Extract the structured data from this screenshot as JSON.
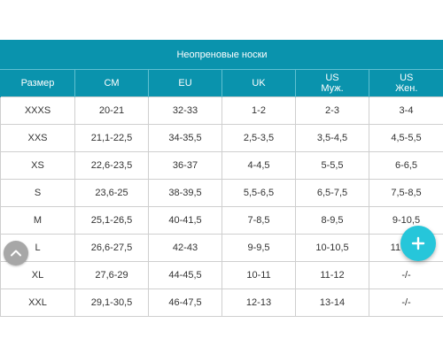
{
  "table": {
    "title": "Неопреновые носки",
    "headers": [
      {
        "line1": "Размер",
        "line2": ""
      },
      {
        "line1": "CM",
        "line2": ""
      },
      {
        "line1": "EU",
        "line2": ""
      },
      {
        "line1": "UK",
        "line2": ""
      },
      {
        "line1": "US",
        "line2": "Муж."
      },
      {
        "line1": "US",
        "line2": "Жен."
      }
    ],
    "rows": [
      [
        "XXXS",
        "20-21",
        "32-33",
        "1-2",
        "2-3",
        "3-4"
      ],
      [
        "XXS",
        "21,1-22,5",
        "34-35,5",
        "2,5-3,5",
        "3,5-4,5",
        "4,5-5,5"
      ],
      [
        "XS",
        "22,6-23,5",
        "36-37",
        "4-4,5",
        "5-5,5",
        "6-6,5"
      ],
      [
        "S",
        "23,6-25",
        "38-39,5",
        "5,5-6,5",
        "6,5-7,5",
        "7,5-8,5"
      ],
      [
        "M",
        "25,1-26,5",
        "40-41,5",
        "7-8,5",
        "8-9,5",
        "9-10,5"
      ],
      [
        "L",
        "26,6-27,5",
        "42-43",
        "9-9,5",
        "10-10,5",
        "11-11,5"
      ],
      [
        "XL",
        "27,6-29",
        "44-45,5",
        "10-11",
        "11-12",
        "-/-"
      ],
      [
        "XXL",
        "29,1-30,5",
        "46-47,5",
        "12-13",
        "13-14",
        "-/-"
      ]
    ]
  },
  "buttons": {
    "scroll_top_icon": "chevron-up-icon",
    "fab_icon": "plus-icon"
  },
  "colors": {
    "header_bg": "#0a93ad",
    "fab_bg": "#26c6da",
    "scroll_btn_bg": "#a7a7a7"
  }
}
